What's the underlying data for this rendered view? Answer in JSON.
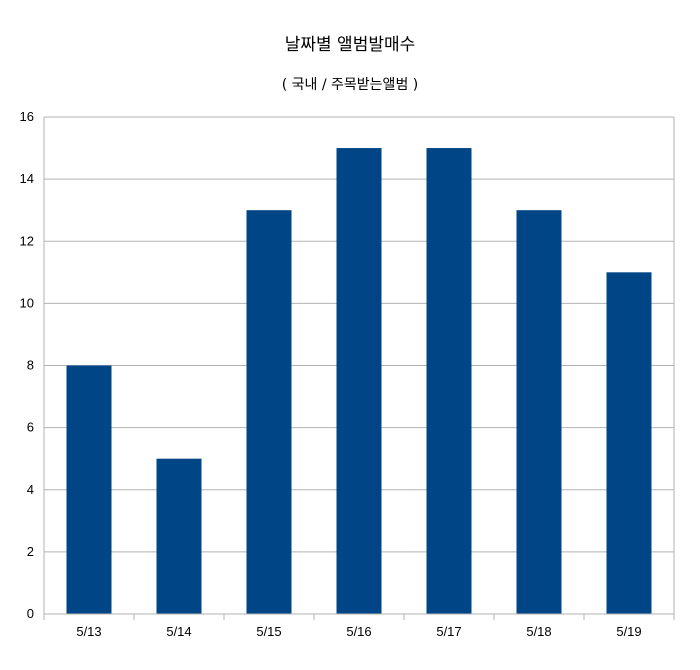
{
  "chart_data": {
    "type": "bar",
    "title": "날짜별 앨범발매수",
    "subtitle": "( 국내 / 주목받는앨범 )",
    "categories": [
      "5/13",
      "5/14",
      "5/15",
      "5/16",
      "5/17",
      "5/18",
      "5/19"
    ],
    "values": [
      8,
      5,
      13,
      15,
      15,
      13,
      11
    ],
    "xlabel": "",
    "ylabel": "",
    "ylim": [
      0,
      16
    ],
    "yticks": [
      0,
      2,
      4,
      6,
      8,
      10,
      12,
      14,
      16
    ],
    "grid": true,
    "legend": "none",
    "bar_color": "#004586",
    "grid_color": "#b3b3b3"
  }
}
